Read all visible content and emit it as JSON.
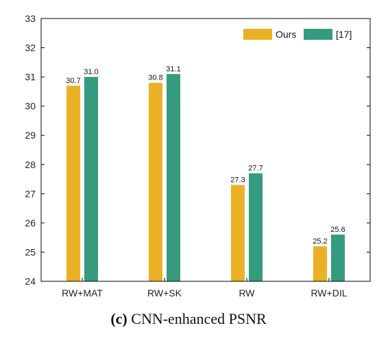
{
  "chart_data": {
    "type": "bar",
    "categories": [
      "RW+MAT",
      "RW+SK",
      "RW",
      "RW+DIL"
    ],
    "series": [
      {
        "name": "Ours",
        "values": [
          30.7,
          30.8,
          27.3,
          25.2
        ],
        "labels": [
          "30.7",
          "30.8",
          "27.3",
          "25.2"
        ],
        "color": "#EBB126"
      },
      {
        "name": "[17]",
        "values": [
          31.0,
          31.1,
          27.7,
          25.6
        ],
        "labels": [
          "31.0",
          "31.1",
          "27.7",
          "25.6"
        ],
        "color": "#359B7F"
      }
    ],
    "ylim": [
      24,
      33
    ],
    "yticks": [
      24,
      25,
      26,
      27,
      28,
      29,
      30,
      31,
      32,
      33
    ],
    "xlabel": "",
    "ylabel": "",
    "grid": false,
    "legend_position": "top-right"
  },
  "caption": {
    "prefix": "(c)",
    "text": " CNN-enhanced PSNR"
  }
}
